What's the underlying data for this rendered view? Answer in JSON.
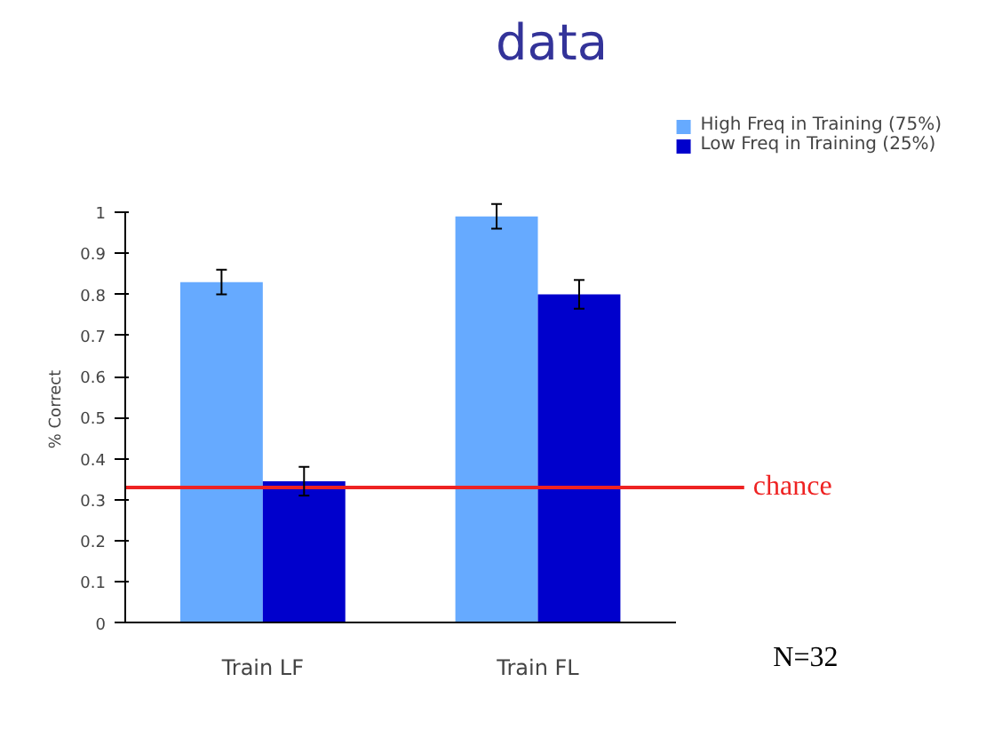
{
  "chart_data": {
    "type": "bar",
    "title": "data",
    "ylabel": "% Correct",
    "categories": [
      "Train LF",
      "Train FL"
    ],
    "series": [
      {
        "name": "High Freq in Training (75%)",
        "color": "#66aaff",
        "values": [
          0.83,
          0.99
        ],
        "errors": [
          0.03,
          0.03
        ]
      },
      {
        "name": "Low Freq in Training (25%)",
        "color": "#0000cc",
        "values": [
          0.345,
          0.8
        ],
        "errors": [
          0.035,
          0.035
        ]
      }
    ],
    "ylim": [
      0,
      1
    ],
    "yticks": [
      0,
      0.1,
      0.2,
      0.3,
      0.4,
      0.5,
      0.6,
      0.7,
      0.8,
      0.9,
      1
    ],
    "grid": false,
    "legend": "top right",
    "ref_lines": [
      {
        "axis": "y",
        "value": 0.33,
        "label": "chance",
        "color": "#ee2222"
      }
    ],
    "annotations": [
      "N=32"
    ]
  }
}
